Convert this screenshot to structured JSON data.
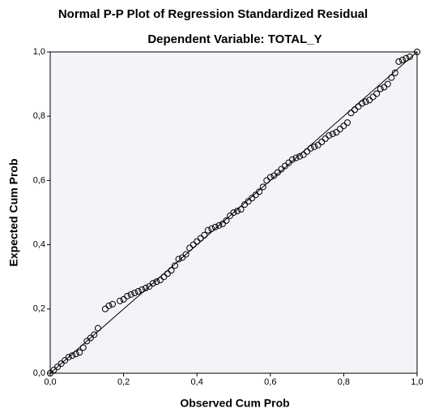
{
  "chart_data": {
    "type": "scatter",
    "title": "Normal P-P Plot of Regression Standardized Residual",
    "subtitle": "Dependent Variable: TOTAL_Y",
    "x_label": "Observed Cum Prob",
    "y_label": "Expected Cum Prob",
    "x": [
      0.0,
      0.01,
      0.02,
      0.03,
      0.04,
      0.05,
      0.06,
      0.07,
      0.08,
      0.09,
      0.1,
      0.11,
      0.12,
      0.13,
      0.15,
      0.16,
      0.17,
      0.19,
      0.2,
      0.21,
      0.22,
      0.23,
      0.24,
      0.25,
      0.26,
      0.27,
      0.28,
      0.29,
      0.3,
      0.31,
      0.32,
      0.33,
      0.34,
      0.35,
      0.36,
      0.37,
      0.38,
      0.39,
      0.4,
      0.41,
      0.42,
      0.43,
      0.44,
      0.45,
      0.46,
      0.47,
      0.48,
      0.49,
      0.5,
      0.51,
      0.52,
      0.53,
      0.54,
      0.55,
      0.56,
      0.57,
      0.58,
      0.59,
      0.6,
      0.61,
      0.62,
      0.63,
      0.64,
      0.65,
      0.66,
      0.67,
      0.68,
      0.69,
      0.7,
      0.71,
      0.72,
      0.73,
      0.74,
      0.75,
      0.76,
      0.77,
      0.78,
      0.79,
      0.8,
      0.81,
      0.82,
      0.83,
      0.84,
      0.85,
      0.86,
      0.87,
      0.88,
      0.89,
      0.9,
      0.91,
      0.92,
      0.93,
      0.94,
      0.95,
      0.96,
      0.97,
      0.98,
      1.0
    ],
    "values": [
      0.0,
      0.01,
      0.02,
      0.03,
      0.04,
      0.05,
      0.055,
      0.06,
      0.065,
      0.08,
      0.1,
      0.11,
      0.12,
      0.14,
      0.2,
      0.21,
      0.215,
      0.225,
      0.23,
      0.24,
      0.245,
      0.25,
      0.255,
      0.26,
      0.265,
      0.27,
      0.28,
      0.285,
      0.29,
      0.3,
      0.31,
      0.32,
      0.335,
      0.355,
      0.36,
      0.37,
      0.39,
      0.4,
      0.41,
      0.42,
      0.43,
      0.445,
      0.45,
      0.455,
      0.46,
      0.465,
      0.475,
      0.49,
      0.5,
      0.505,
      0.51,
      0.525,
      0.535,
      0.545,
      0.555,
      0.565,
      0.58,
      0.6,
      0.61,
      0.615,
      0.625,
      0.635,
      0.645,
      0.655,
      0.665,
      0.67,
      0.675,
      0.68,
      0.69,
      0.7,
      0.705,
      0.71,
      0.72,
      0.73,
      0.74,
      0.745,
      0.75,
      0.76,
      0.77,
      0.78,
      0.81,
      0.82,
      0.83,
      0.84,
      0.845,
      0.85,
      0.86,
      0.87,
      0.885,
      0.89,
      0.9,
      0.92,
      0.935,
      0.97,
      0.975,
      0.98,
      0.985,
      1.0
    ],
    "xlim": [
      0,
      1
    ],
    "ylim": [
      0,
      1
    ],
    "xticks": [
      {
        "value": 0,
        "label": "0,0"
      },
      {
        "value": 0.2,
        "label": "0,2"
      },
      {
        "value": 0.4,
        "label": "0,4"
      },
      {
        "value": 0.6,
        "label": "0,6"
      },
      {
        "value": 0.8,
        "label": "0,8"
      },
      {
        "value": 1,
        "label": "1,0"
      }
    ],
    "yticks": [
      {
        "value": 0,
        "label": "0,0"
      },
      {
        "value": 0.2,
        "label": "0,2"
      },
      {
        "value": 0.4,
        "label": "0,4"
      },
      {
        "value": 0.6,
        "label": "0,6"
      },
      {
        "value": 0.8,
        "label": "0,8"
      },
      {
        "value": 1,
        "label": "1,0"
      }
    ]
  }
}
